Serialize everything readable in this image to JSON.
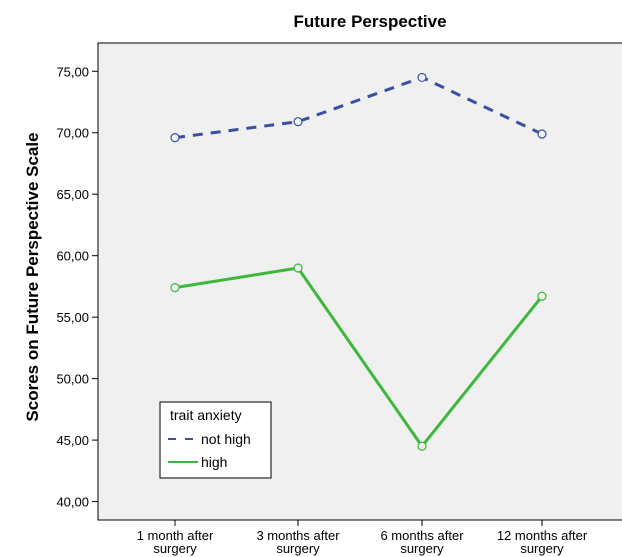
{
  "chart_data": {
    "type": "line",
    "title": "Future Perspective",
    "xlabel": "",
    "ylabel": "Scores on Future Perspective Scale",
    "categories": [
      [
        "1 month after",
        "surgery"
      ],
      [
        "3 months after",
        "surgery"
      ],
      [
        "6 months after",
        "surgery"
      ],
      [
        "12 months after",
        "surgery"
      ]
    ],
    "ylim": [
      38.5,
      77.3
    ],
    "yticks": [
      "40,00",
      "45,00",
      "50,00",
      "55,00",
      "60,00",
      "65,00",
      "70,00",
      "75,00"
    ],
    "ytick_values": [
      40,
      45,
      50,
      55,
      60,
      65,
      70,
      75
    ],
    "grid": false,
    "legend": {
      "title": "trait anxiety",
      "placement": "bottom-left"
    },
    "series": [
      {
        "name": "not high",
        "values": [
          69.6,
          70.9,
          74.5,
          69.9
        ],
        "color": "#3a4fa0",
        "style": "dashed"
      },
      {
        "name": "high",
        "values": [
          57.4,
          59.0,
          44.5,
          56.7
        ],
        "color": "#3cb83c",
        "style": "solid"
      }
    ],
    "plot_background": "#f0f0f0"
  }
}
